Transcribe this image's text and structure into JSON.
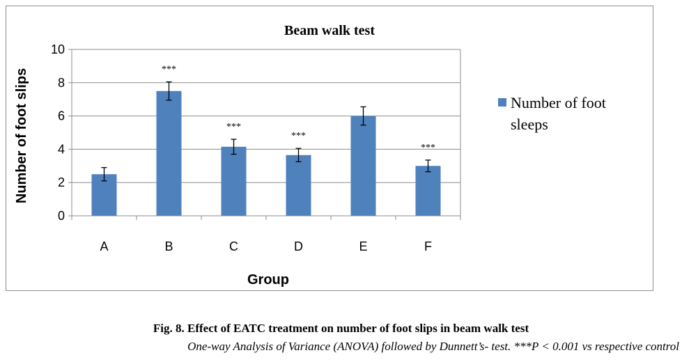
{
  "chart_data": {
    "type": "bar",
    "title": "Beam walk test",
    "xlabel": "Group",
    "ylabel": "Number of foot slips",
    "ylim": [
      0,
      10
    ],
    "yticks": [
      0,
      2,
      4,
      6,
      8,
      10
    ],
    "categories": [
      "A",
      "B",
      "C",
      "D",
      "E",
      "F"
    ],
    "series": [
      {
        "name": "Number of foot sleeps",
        "color": "#4f81bd",
        "values": [
          2.5,
          7.5,
          4.15,
          3.65,
          6.0,
          3.0
        ],
        "errors": [
          0.4,
          0.55,
          0.45,
          0.4,
          0.55,
          0.35
        ],
        "annotations": [
          "",
          "***",
          "***",
          "***",
          "",
          "***"
        ]
      }
    ],
    "legend": {
      "position": "right",
      "lines": [
        "Number of foot",
        "sleeps"
      ]
    },
    "grid": true
  },
  "caption": {
    "title": "Fig. 8. Effect of EATC treatment on number of foot slips in beam walk test",
    "note": "One-way Analysis of Variance (ANOVA) followed by Dunnett’s- test.  ***P < 0.001 vs respective control"
  }
}
